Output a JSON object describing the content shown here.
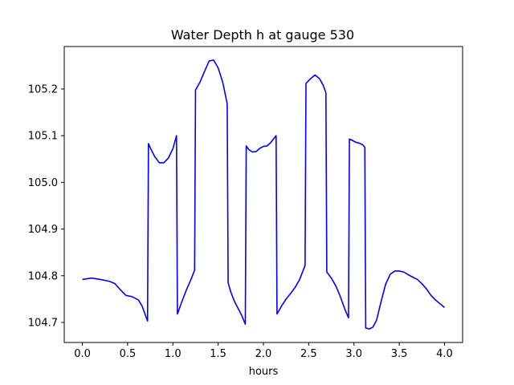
{
  "chart_data": {
    "type": "line",
    "title": "Water Depth h at gauge 530",
    "xlabel": "hours",
    "ylabel": "",
    "xlim": [
      -0.2,
      4.2
    ],
    "ylim": [
      104.657,
      105.291
    ],
    "grid": false,
    "xticks": [
      0.0,
      0.5,
      1.0,
      1.5,
      2.0,
      2.5,
      3.0,
      3.5,
      4.0
    ],
    "xtick_labels": [
      "0.0",
      "0.5",
      "1.0",
      "1.5",
      "2.0",
      "2.5",
      "3.0",
      "3.5",
      "4.0"
    ],
    "yticks": [
      104.7,
      104.8,
      104.9,
      105.0,
      105.1,
      105.2
    ],
    "ytick_labels": [
      "104.7",
      "104.8",
      "104.9",
      "105.0",
      "105.1",
      "105.2"
    ],
    "series": [
      {
        "color": "#0000ff",
        "x": [
          0.0,
          0.1,
          0.2,
          0.3,
          0.36,
          0.42,
          0.48,
          0.55,
          0.62,
          0.66,
          0.72,
          0.73,
          0.76,
          0.8,
          0.85,
          0.9,
          0.95,
          1.0,
          1.04,
          1.05,
          1.1,
          1.15,
          1.2,
          1.24,
          1.25,
          1.3,
          1.35,
          1.4,
          1.45,
          1.5,
          1.55,
          1.6,
          1.61,
          1.64,
          1.68,
          1.72,
          1.76,
          1.8,
          1.81,
          1.84,
          1.88,
          1.92,
          1.96,
          2.0,
          2.04,
          2.08,
          2.14,
          2.15,
          2.2,
          2.25,
          2.3,
          2.35,
          2.4,
          2.46,
          2.47,
          2.52,
          2.57,
          2.62,
          2.66,
          2.69,
          2.7,
          2.75,
          2.8,
          2.85,
          2.9,
          2.94,
          2.95,
          2.98,
          3.02,
          3.06,
          3.1,
          3.12,
          3.13,
          3.17,
          3.21,
          3.25,
          3.3,
          3.35,
          3.4,
          3.45,
          3.5,
          3.55,
          3.6,
          3.65,
          3.7,
          3.75,
          3.8,
          3.85,
          3.9,
          3.95,
          4.0
        ],
        "y": [
          104.792,
          104.795,
          104.792,
          104.788,
          104.783,
          104.77,
          104.758,
          104.755,
          104.748,
          104.735,
          104.703,
          105.083,
          105.07,
          105.055,
          105.042,
          105.042,
          105.052,
          105.072,
          105.1,
          104.718,
          104.745,
          104.77,
          104.792,
          104.812,
          105.198,
          105.215,
          105.238,
          105.26,
          105.262,
          105.245,
          105.215,
          105.168,
          104.785,
          104.765,
          104.745,
          104.73,
          104.715,
          104.696,
          105.078,
          105.07,
          105.065,
          105.066,
          105.073,
          105.077,
          105.078,
          105.085,
          105.1,
          104.718,
          104.735,
          104.75,
          104.762,
          104.775,
          104.792,
          104.822,
          105.212,
          105.222,
          105.23,
          105.222,
          105.208,
          105.192,
          104.808,
          104.795,
          104.778,
          104.755,
          104.728,
          104.71,
          105.093,
          105.09,
          105.086,
          105.084,
          105.08,
          105.075,
          104.688,
          104.686,
          104.69,
          104.705,
          104.745,
          104.782,
          104.803,
          104.81,
          104.81,
          104.808,
          104.802,
          104.797,
          104.792,
          104.783,
          104.772,
          104.758,
          104.748,
          104.74,
          104.732
        ]
      }
    ]
  }
}
